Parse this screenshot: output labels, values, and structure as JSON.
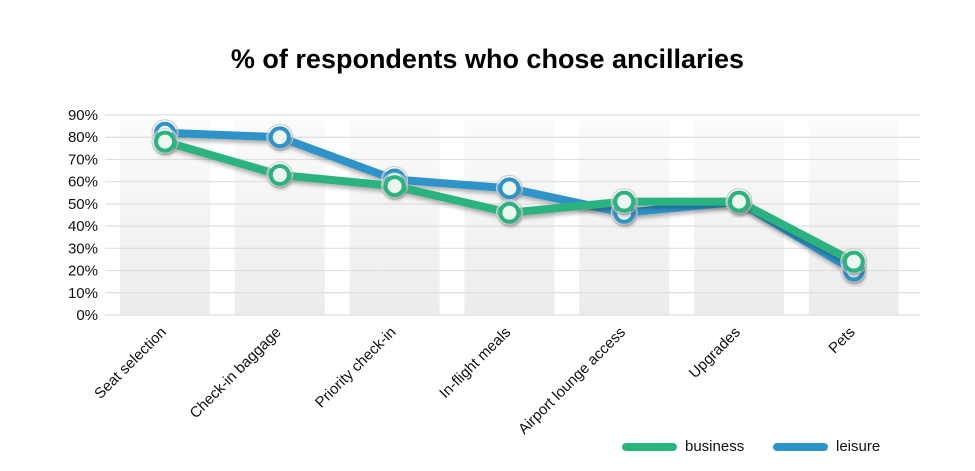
{
  "chart_data": {
    "type": "line",
    "title": "% of respondents who chose ancillaries",
    "xlabel": "",
    "ylabel": "",
    "categories": [
      "Seat selection",
      "Check-in baggage",
      "Priority check-in",
      "In-flight meals",
      "Airport lounge access",
      "Upgrades",
      "Pets"
    ],
    "ylim": [
      0,
      90
    ],
    "yticks": [
      "0%",
      "10%",
      "20%",
      "30%",
      "40%",
      "50%",
      "60%",
      "70%",
      "80%",
      "90%"
    ],
    "grid": true,
    "legend_position": "bottom-right",
    "series": [
      {
        "name": "leisure",
        "color": "#2e93c9",
        "values": [
          82,
          80,
          61,
          57,
          46,
          51,
          20
        ]
      },
      {
        "name": "business",
        "color": "#2bb37f",
        "values": [
          78,
          63,
          58,
          46,
          51,
          51,
          24
        ]
      }
    ]
  }
}
